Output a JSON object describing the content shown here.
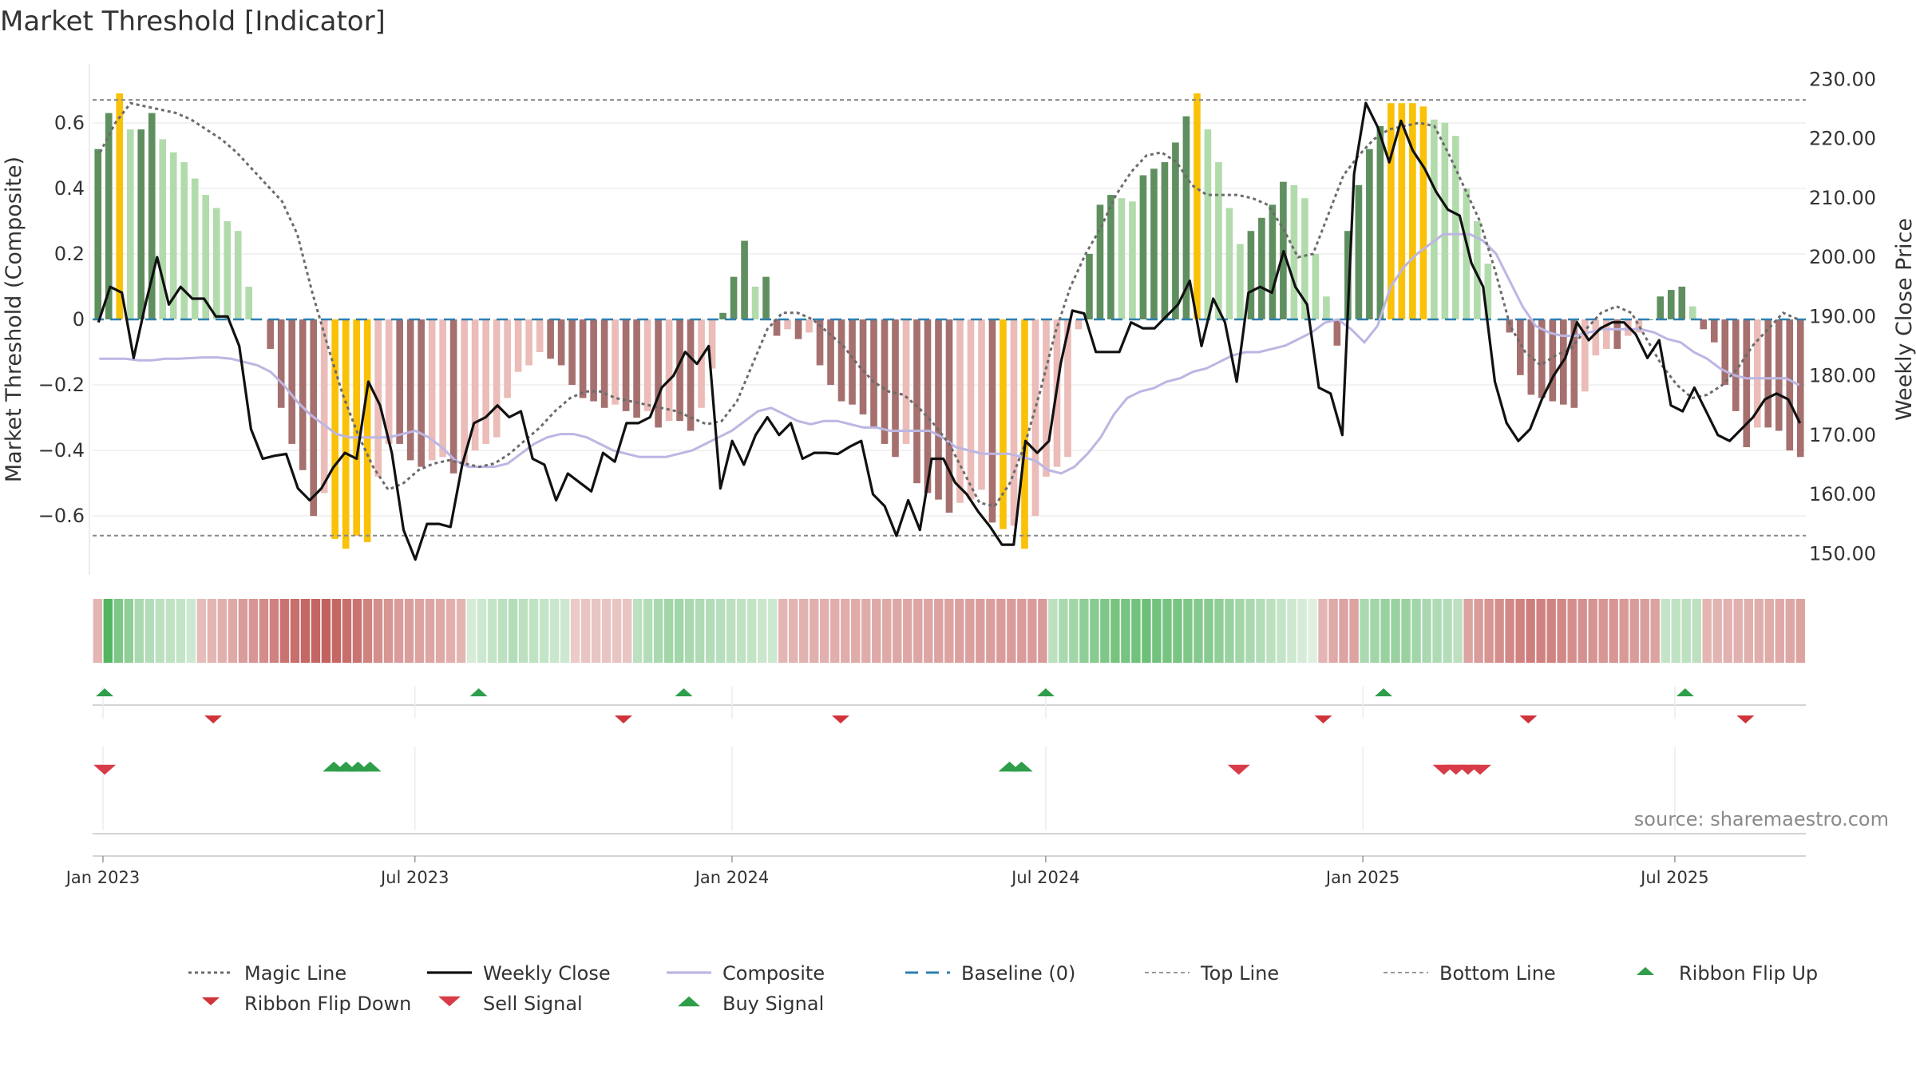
{
  "chart_data": {
    "type": "bar",
    "title": "Market Threshold [Indicator]",
    "ylabel_left": "Market Threshold (Composite)",
    "ylabel_right": "Weekly Close Price",
    "source": "source: sharemaestro.com",
    "ylim_left": [
      -0.78,
      0.78
    ],
    "ylim_right": [
      146.4,
      232.6
    ],
    "yticks_left": [
      "0.6",
      "0.4",
      "0.2",
      "0",
      "−0.2",
      "−0.4",
      "−0.6"
    ],
    "yticks_right": [
      "230.00",
      "220.00",
      "210.00",
      "200.00",
      "190.00",
      "180.00",
      "170.00",
      "160.00",
      "150.00"
    ],
    "x_labels": [
      "Jan 2023",
      "Jul 2023",
      "Jan 2024",
      "Jul 2024",
      "Jan 2025",
      "Jul 2025"
    ],
    "top_line": 0.67,
    "bottom_line": -0.66,
    "colors": {
      "strong_up": "#5f8f5f",
      "weak_up": "#b2dbac",
      "strong_down": "#a5706e",
      "weak_down": "#ebbcb8",
      "extreme": "#f9c107",
      "weekly_close": "#111111",
      "composite": "#bcb6e3",
      "magic_line": "#6b6b6b",
      "baseline": "#2f7fb0",
      "buy": "#2e9e4a",
      "sell": "#d83c48"
    },
    "composite_bars": [
      0.52,
      0.63,
      0.69,
      0.58,
      0.58,
      0.63,
      0.55,
      0.51,
      0.48,
      0.43,
      0.38,
      0.34,
      0.3,
      0.27,
      0.1,
      0.0,
      -0.09,
      -0.27,
      -0.38,
      -0.46,
      -0.6,
      -0.53,
      -0.67,
      -0.7,
      -0.66,
      -0.68,
      -0.48,
      -0.38,
      -0.38,
      -0.43,
      -0.45,
      -0.43,
      -0.42,
      -0.47,
      -0.44,
      -0.4,
      -0.38,
      -0.36,
      -0.24,
      -0.16,
      -0.14,
      -0.1,
      -0.12,
      -0.14,
      -0.2,
      -0.24,
      -0.25,
      -0.27,
      -0.26,
      -0.28,
      -0.3,
      -0.28,
      -0.33,
      -0.31,
      -0.31,
      -0.34,
      -0.27,
      -0.15,
      0.02,
      0.13,
      0.24,
      0.1,
      0.13,
      -0.05,
      -0.03,
      -0.06,
      -0.04,
      -0.14,
      -0.2,
      -0.25,
      -0.26,
      -0.29,
      -0.33,
      -0.38,
      -0.42,
      -0.38,
      -0.5,
      -0.53,
      -0.55,
      -0.59,
      -0.56,
      -0.55,
      -0.52,
      -0.62,
      -0.64,
      -0.63,
      -0.7,
      -0.6,
      -0.48,
      -0.45,
      -0.42,
      -0.03,
      0.2,
      0.35,
      0.38,
      0.37,
      0.36,
      0.44,
      0.46,
      0.48,
      0.54,
      0.62,
      0.69,
      0.58,
      0.48,
      0.34,
      0.23,
      0.27,
      0.31,
      0.35,
      0.42,
      0.41,
      0.37,
      0.2,
      0.07,
      -0.08,
      0.27,
      0.41,
      0.52,
      0.59,
      0.66,
      0.66,
      0.66,
      0.65,
      0.61,
      0.6,
      0.56,
      0.4,
      0.3,
      0.17,
      0.0,
      -0.04,
      -0.17,
      -0.23,
      -0.24,
      -0.25,
      -0.26,
      -0.27,
      -0.22,
      -0.11,
      -0.09,
      -0.09,
      -0.05,
      -0.04,
      0.0,
      0.07,
      0.09,
      0.1,
      0.04,
      -0.03,
      -0.07,
      -0.2,
      -0.28,
      -0.39,
      -0.33,
      -0.33,
      -0.34,
      -0.4,
      -0.42
    ],
    "weekly_close": [
      189,
      195,
      194,
      183,
      192,
      200,
      192,
      195,
      193,
      193,
      190,
      190,
      185,
      171,
      166,
      166.5,
      166.8,
      161,
      159,
      161,
      164.5,
      167,
      166,
      179,
      175,
      167,
      154,
      149,
      155,
      155,
      154.5,
      165,
      172,
      173,
      175,
      173,
      174,
      166,
      165,
      159,
      163.5,
      162,
      160.5,
      167,
      165.5,
      172,
      172,
      173,
      178,
      180,
      184,
      182,
      185,
      161,
      169,
      165,
      170,
      173,
      170,
      172,
      166,
      167,
      167,
      166.8,
      168,
      169,
      160,
      158,
      153,
      159,
      154,
      166,
      166,
      162,
      160,
      157,
      154.5,
      151.5,
      151.5,
      169,
      167,
      169,
      182,
      191,
      190.5,
      184,
      184,
      184,
      189,
      188,
      188,
      190,
      192,
      196,
      185,
      193,
      189,
      179,
      194,
      195,
      194,
      201,
      195,
      192,
      178,
      177,
      170,
      214,
      226,
      222,
      216,
      223,
      218,
      215,
      211,
      208,
      207,
      199,
      195,
      179,
      172,
      169,
      171,
      176,
      180,
      183,
      189,
      186,
      188,
      189,
      189,
      187,
      183,
      186,
      175,
      174,
      178,
      174,
      170,
      169,
      171,
      173,
      176,
      177,
      176,
      172
    ],
    "composite_line": [
      -0.12,
      -0.12,
      -0.12,
      -0.125,
      -0.125,
      -0.12,
      -0.12,
      -0.118,
      -0.116,
      -0.116,
      -0.12,
      -0.13,
      -0.14,
      -0.16,
      -0.2,
      -0.25,
      -0.29,
      -0.32,
      -0.35,
      -0.36,
      -0.36,
      -0.36,
      -0.36,
      -0.35,
      -0.34,
      -0.36,
      -0.39,
      -0.43,
      -0.45,
      -0.45,
      -0.45,
      -0.44,
      -0.41,
      -0.38,
      -0.36,
      -0.35,
      -0.35,
      -0.36,
      -0.38,
      -0.4,
      -0.41,
      -0.42,
      -0.42,
      -0.42,
      -0.41,
      -0.4,
      -0.38,
      -0.36,
      -0.34,
      -0.31,
      -0.28,
      -0.27,
      -0.29,
      -0.31,
      -0.32,
      -0.31,
      -0.31,
      -0.32,
      -0.33,
      -0.33,
      -0.34,
      -0.34,
      -0.34,
      -0.34,
      -0.36,
      -0.39,
      -0.4,
      -0.41,
      -0.41,
      -0.41,
      -0.42,
      -0.43,
      -0.46,
      -0.47,
      -0.45,
      -0.41,
      -0.36,
      -0.29,
      -0.24,
      -0.22,
      -0.21,
      -0.19,
      -0.18,
      -0.16,
      -0.15,
      -0.13,
      -0.11,
      -0.1,
      -0.1,
      -0.09,
      -0.08,
      -0.06,
      -0.04,
      -0.01,
      0.0,
      -0.03,
      -0.07,
      -0.02,
      0.1,
      0.16,
      0.2,
      0.23,
      0.26,
      0.26,
      0.26,
      0.24,
      0.2,
      0.12,
      0.04,
      -0.02,
      -0.04,
      -0.05,
      -0.05,
      -0.04,
      -0.03,
      -0.03,
      -0.03,
      -0.03,
      -0.04,
      -0.06,
      -0.07,
      -0.1,
      -0.12,
      -0.15,
      -0.17,
      -0.18,
      -0.18,
      -0.18,
      -0.18,
      -0.2
    ],
    "magic_line": [
      0.51,
      0.6,
      0.66,
      0.65,
      0.64,
      0.63,
      0.61,
      0.58,
      0.55,
      0.51,
      0.46,
      0.41,
      0.36,
      0.26,
      0.08,
      -0.08,
      -0.23,
      -0.35,
      -0.45,
      -0.52,
      -0.5,
      -0.46,
      -0.44,
      -0.43,
      -0.44,
      -0.45,
      -0.44,
      -0.41,
      -0.37,
      -0.33,
      -0.28,
      -0.24,
      -0.22,
      -0.22,
      -0.24,
      -0.25,
      -0.26,
      -0.27,
      -0.28,
      -0.3,
      -0.32,
      -0.31,
      -0.25,
      -0.14,
      -0.03,
      0.02,
      0.02,
      0.0,
      -0.04,
      -0.08,
      -0.14,
      -0.19,
      -0.22,
      -0.23,
      -0.27,
      -0.32,
      -0.38,
      -0.47,
      -0.56,
      -0.57,
      -0.5,
      -0.38,
      -0.22,
      -0.04,
      0.1,
      0.2,
      0.28,
      0.38,
      0.45,
      0.5,
      0.51,
      0.48,
      0.41,
      0.38,
      0.38,
      0.38,
      0.37,
      0.35,
      0.28,
      0.19,
      0.2,
      0.32,
      0.44,
      0.5,
      0.55,
      0.58,
      0.59,
      0.6,
      0.59,
      0.5,
      0.4,
      0.3,
      0.15,
      -0.02,
      -0.1,
      -0.14,
      -0.11,
      -0.09,
      -0.03,
      0.02,
      0.04,
      0.02,
      -0.06,
      -0.14,
      -0.2,
      -0.24,
      -0.23,
      -0.2,
      -0.15,
      -0.08,
      -0.03,
      0.02,
      0.0
    ],
    "ribbon_levels": [
      -0.3,
      0.9,
      0.65,
      0.55,
      0.4,
      0.35,
      0.3,
      0.28,
      0.25,
      0.2,
      -0.25,
      -0.3,
      -0.35,
      -0.4,
      -0.5,
      -0.55,
      -0.62,
      -0.7,
      -0.8,
      -0.85,
      -0.9,
      -0.92,
      -0.95,
      -0.9,
      -0.85,
      -0.8,
      -0.7,
      -0.6,
      -0.55,
      -0.5,
      -0.48,
      -0.45,
      -0.43,
      -0.4,
      -0.35,
      -0.3,
      0.15,
      0.2,
      0.25,
      0.3,
      0.35,
      0.3,
      0.28,
      0.25,
      0.22,
      0.2,
      -0.15,
      -0.2,
      -0.2,
      -0.2,
      -0.2,
      -0.2,
      0.3,
      0.35,
      0.4,
      0.45,
      0.45,
      0.4,
      0.38,
      0.35,
      0.32,
      0.3,
      0.28,
      0.26,
      0.22,
      0.2,
      -0.3,
      -0.32,
      -0.33,
      -0.35,
      -0.35,
      -0.36,
      -0.37,
      -0.38,
      -0.38,
      -0.4,
      -0.4,
      -0.42,
      -0.42,
      -0.43,
      -0.43,
      -0.45,
      -0.45,
      -0.46,
      -0.47,
      -0.48,
      -0.48,
      -0.5,
      -0.5,
      -0.5,
      -0.5,
      -0.5,
      0.3,
      0.4,
      0.45,
      0.55,
      0.6,
      0.65,
      0.7,
      0.7,
      0.72,
      0.75,
      0.72,
      0.7,
      0.68,
      0.65,
      0.62,
      0.6,
      0.55,
      0.5,
      0.45,
      0.4,
      0.35,
      0.3,
      0.25,
      0.2,
      0.15,
      0.1,
      -0.3,
      -0.4,
      -0.45,
      -0.45,
      0.4,
      0.45,
      0.5,
      0.5,
      0.5,
      0.45,
      0.4,
      0.38,
      0.35,
      0.3,
      -0.45,
      -0.5,
      -0.55,
      -0.6,
      -0.65,
      -0.7,
      -0.72,
      -0.7,
      -0.68,
      -0.65,
      -0.6,
      -0.58,
      -0.56,
      -0.55,
      -0.55,
      -0.52,
      -0.5,
      -0.48,
      -0.45,
      0.25,
      0.28,
      0.3,
      0.3,
      -0.3,
      -0.32,
      -0.33,
      -0.34,
      -0.35,
      -0.36,
      -0.38,
      -0.4,
      -0.42,
      -0.45
    ],
    "ribbon_flip_up": [
      "2023-01-02",
      "2023-08-07",
      "2023-12-04",
      "2024-07-01",
      "2025-01-13",
      "2025-07-07"
    ],
    "ribbon_flip_down": [
      "2023-03-06",
      "2023-10-30",
      "2024-03-04",
      "2024-12-09",
      "2025-04-07",
      "2025-08-11"
    ],
    "buy_signals": [
      "2023-05-15",
      "2023-05-22",
      "2023-05-29",
      "2023-06-05",
      "2024-06-10",
      "2024-06-17"
    ],
    "sell_signals": [
      "2023-01-02",
      "2024-10-21",
      "2025-02-17",
      "2025-02-24",
      "2025-03-03",
      "2025-03-10"
    ],
    "legend": [
      "Magic Line",
      "Weekly Close",
      "Composite",
      "Baseline (0)",
      "Top Line",
      "Bottom Line",
      "Ribbon Flip Up",
      "Ribbon Flip Down",
      "Sell Signal",
      "Buy Signal"
    ]
  }
}
